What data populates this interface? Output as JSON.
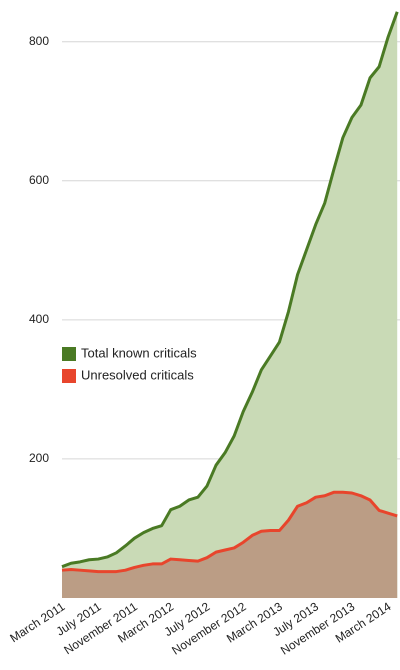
{
  "chart_data": {
    "type": "area",
    "categories": [
      "March 2011",
      null,
      null,
      null,
      "July 2011",
      null,
      null,
      null,
      "November 2011",
      null,
      null,
      null,
      "March 2012",
      null,
      null,
      null,
      "July 2012",
      null,
      null,
      null,
      "November 2012",
      null,
      null,
      null,
      "March 2013",
      null,
      null,
      null,
      "July 2013",
      null,
      null,
      null,
      "November 2013",
      null,
      null,
      null,
      "March 2014",
      null
    ],
    "series": [
      {
        "name": "Total known criticals",
        "color": "#4a7a24",
        "fill": "#c9dab6",
        "values": [
          45,
          50,
          52,
          55,
          56,
          59,
          65,
          75,
          86,
          94,
          100,
          104,
          127,
          132,
          141,
          145,
          161,
          191,
          209,
          233,
          268,
          296,
          328,
          348,
          368,
          412,
          465,
          501,
          537,
          568,
          616,
          662,
          691,
          709,
          748,
          764,
          807,
          843
        ]
      },
      {
        "name": "Unresolved criticals",
        "color": "#e8452c",
        "fill": "#bb9d85",
        "values": [
          40,
          41,
          40,
          39,
          38,
          38,
          38,
          40,
          44,
          47,
          49,
          49,
          56,
          55,
          54,
          53,
          58,
          66,
          69,
          72,
          80,
          90,
          96,
          97,
          97,
          112,
          132,
          137,
          145,
          147,
          152,
          152,
          151,
          147,
          141,
          126,
          122,
          118
        ]
      }
    ],
    "ylim": [
      0,
      860
    ],
    "yticks": [
      200,
      400,
      600,
      800
    ],
    "grid": true,
    "legend": "left"
  }
}
